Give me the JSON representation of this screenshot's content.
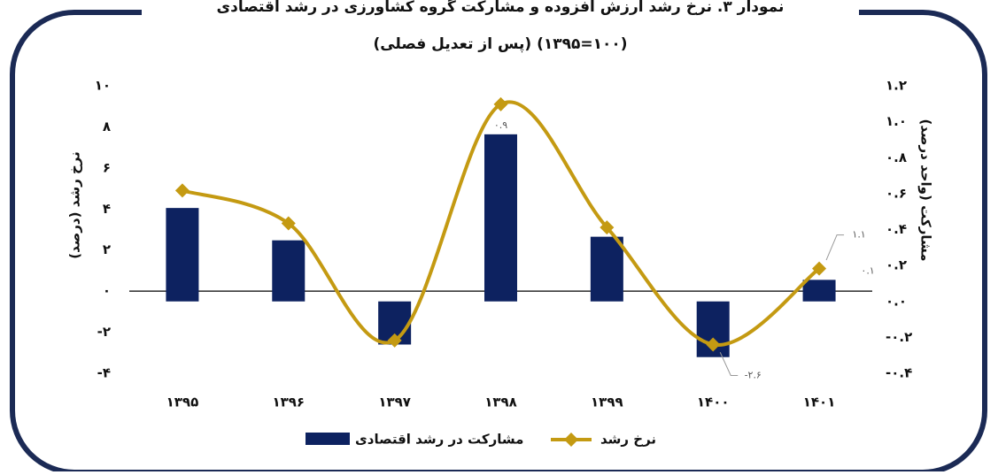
{
  "chart_data": {
    "type": "bar-line",
    "title": "نمودار ۳. نرخ رشد ارزش افزوده و مشارکت گروه کشاورزی در رشد اقتصادی",
    "subtitle": "(پس از تعدیل فصلی) (۱۰۰=۱۳۹۵)",
    "y_label": "نرخ رشد (درصد)",
    "y2_label": "مشارکت (واحد درصد)",
    "categories": [
      "۱۳۹۵",
      "۱۳۹۶",
      "۱۳۹۷",
      "۱۳۹۸",
      "۱۳۹۹",
      "۱۴۰۰",
      "۱۴۰۱"
    ],
    "series": [
      {
        "name": "مشارکت در رشد اقتصادی",
        "type": "bar",
        "axis": "y2",
        "color": "#0d2260",
        "values": [
          0.52,
          0.34,
          -0.24,
          0.93,
          0.36,
          -0.31,
          0.12
        ],
        "value_labels": [
          null,
          null,
          null,
          "۰.۹",
          null,
          null,
          "۰.۱"
        ]
      },
      {
        "name": "نرخ رشد",
        "type": "line",
        "axis": "y",
        "color": "#c49a12",
        "values": [
          4.9,
          3.3,
          -2.4,
          9.1,
          3.1,
          -2.6,
          1.1
        ],
        "value_labels": [
          null,
          null,
          null,
          null,
          null,
          "-۲.۶",
          "۱.۱"
        ]
      }
    ],
    "ylim": [
      -4,
      10
    ],
    "yticks": [
      {
        "value": -4,
        "label": "-۴"
      },
      {
        "value": -2,
        "label": "-۲"
      },
      {
        "value": 0,
        "label": "۰"
      },
      {
        "value": 2,
        "label": "۲"
      },
      {
        "value": 4,
        "label": "۴"
      },
      {
        "value": 6,
        "label": "۶"
      },
      {
        "value": 8,
        "label": "۸"
      },
      {
        "value": 10,
        "label": "۱۰"
      }
    ],
    "y2lim": [
      -0.4,
      1.2
    ],
    "y2ticks": [
      {
        "value": -0.4,
        "label": "-۰.۴"
      },
      {
        "value": -0.2,
        "label": "-۰.۲"
      },
      {
        "value": 0,
        "label": "۰.۰"
      },
      {
        "value": 0.2,
        "label": "۰.۲"
      },
      {
        "value": 0.4,
        "label": "۰.۴"
      },
      {
        "value": 0.6,
        "label": "۰.۶"
      },
      {
        "value": 0.8,
        "label": "۰.۸"
      },
      {
        "value": 1.0,
        "label": "۱.۰"
      },
      {
        "value": 1.2,
        "label": "۱.۲"
      }
    ],
    "grid": false
  }
}
